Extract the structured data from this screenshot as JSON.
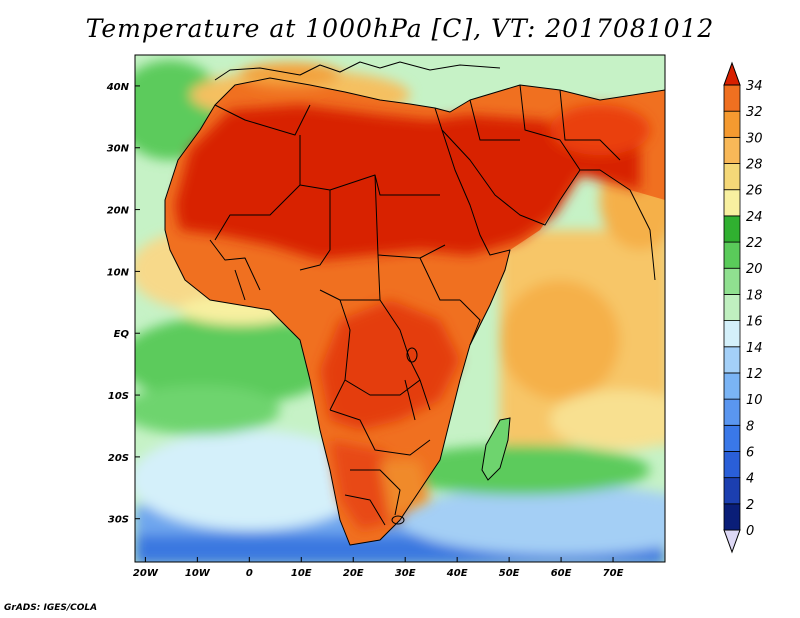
{
  "title": "Temperature at 1000hPa [C], VT: 2017081012",
  "credit": "GrADS: IGES/COLA",
  "map": {
    "lon_range": [
      -22,
      80
    ],
    "lat_range": [
      -37,
      45
    ],
    "lat_ticks": [
      {
        "value": 40,
        "label": "40N"
      },
      {
        "value": 30,
        "label": "30N"
      },
      {
        "value": 20,
        "label": "20N"
      },
      {
        "value": 10,
        "label": "10N"
      },
      {
        "value": 0,
        "label": "EQ"
      },
      {
        "value": -10,
        "label": "10S"
      },
      {
        "value": -20,
        "label": "20S"
      },
      {
        "value": -30,
        "label": "30S"
      }
    ],
    "lon_ticks": [
      {
        "value": -20,
        "label": "20W"
      },
      {
        "value": -10,
        "label": "10W"
      },
      {
        "value": 0,
        "label": "0"
      },
      {
        "value": 10,
        "label": "10E"
      },
      {
        "value": 20,
        "label": "20E"
      },
      {
        "value": 30,
        "label": "30E"
      },
      {
        "value": 40,
        "label": "40E"
      },
      {
        "value": 50,
        "label": "50E"
      },
      {
        "value": 60,
        "label": "60E"
      },
      {
        "value": 70,
        "label": "70E"
      }
    ]
  },
  "colorbar": {
    "levels": [
      "0",
      "2",
      "4",
      "6",
      "8",
      "10",
      "12",
      "14",
      "16",
      "18",
      "20",
      "22",
      "24",
      "26",
      "28",
      "30",
      "32",
      "34"
    ],
    "colors": [
      "#0a1e78",
      "#1c3fb0",
      "#2a5fd8",
      "#3a78e8",
      "#5a96f0",
      "#7ab4f5",
      "#a4d0f8",
      "#d4f0fa",
      "#c0f0c0",
      "#90e090",
      "#5acb5a",
      "#30b030",
      "#f8f0a0",
      "#f5d878",
      "#f8b858",
      "#f59a30",
      "#f07020",
      "#e84010",
      "#d82000"
    ]
  }
}
